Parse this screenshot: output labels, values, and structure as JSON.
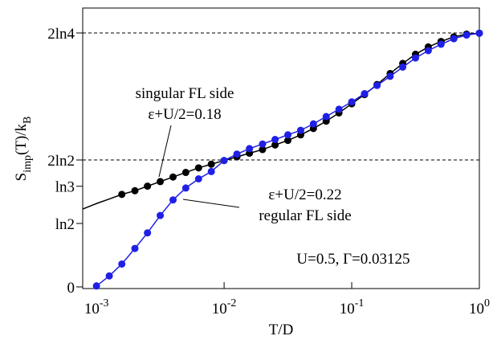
{
  "chart_data": {
    "type": "scatter",
    "xlabel": "T/D",
    "ylabel": [
      {
        "text": "S"
      },
      {
        "text": "imp",
        "sub": true
      },
      {
        "text": "(T)/k"
      },
      {
        "text": "B",
        "sub": true
      }
    ],
    "xscale": "log",
    "xlim": [
      0.00078,
      1.0
    ],
    "ylim": [
      -0.018,
      3.045
    ],
    "xticks": [
      {
        "value": 0.001,
        "label": "10",
        "exponent": "-3"
      },
      {
        "value": 0.01,
        "label": "10",
        "exponent": "-2"
      },
      {
        "value": 0.1,
        "label": "10",
        "exponent": "-1"
      },
      {
        "value": 1,
        "label": "10",
        "exponent": "0"
      }
    ],
    "yticks": [
      0,
      {
        "value": 0.693,
        "label": "ln2"
      },
      {
        "value": 1.099,
        "label": "ln3"
      },
      {
        "value": 1.386,
        "label": "2ln2"
      },
      {
        "value": 2.773,
        "label": "2ln4"
      }
    ],
    "hlines": [
      1.386,
      2.773
    ],
    "annotations": [
      "singular FL side",
      "ε+U/2=0.18",
      "ε+U/2=0.22",
      "regular FL side",
      "U=0.5, Γ=0.03125"
    ],
    "series": [
      {
        "color": "#000000",
        "markers": true,
        "x": [
          0.00158,
          0.002,
          0.00251,
          0.00316,
          0.00398,
          0.00501,
          0.00631,
          0.00794,
          0.01,
          0.0126,
          0.0158,
          0.02,
          0.0251,
          0.0316,
          0.0398,
          0.0501,
          0.0631,
          0.0794,
          0.1,
          0.126,
          0.158,
          0.2,
          0.251,
          0.316,
          0.398,
          0.501,
          0.631,
          0.794,
          1
        ],
        "values": [
          1.01,
          1.05,
          1.1,
          1.15,
          1.2,
          1.25,
          1.3,
          1.34,
          1.38,
          1.42,
          1.46,
          1.5,
          1.55,
          1.6,
          1.66,
          1.73,
          1.81,
          1.9,
          2.0,
          2.1,
          2.21,
          2.33,
          2.44,
          2.54,
          2.62,
          2.68,
          2.73,
          2.76,
          2.77
        ]
      },
      {
        "color": "#000000",
        "markers": false,
        "x": [
          0.00078,
          0.001,
          0.00126,
          0.00158
        ],
        "values": [
          0.85,
          0.91,
          0.96,
          1.01
        ]
      },
      {
        "color": "#1f1fe6",
        "markers": true,
        "x": [
          0.001,
          0.00126,
          0.00158,
          0.002,
          0.00251,
          0.00316,
          0.00398,
          0.00501,
          0.00631,
          0.00794,
          0.01,
          0.0126,
          0.0158,
          0.02,
          0.0251,
          0.0316,
          0.0398,
          0.0501,
          0.0631,
          0.0794,
          0.1,
          0.126,
          0.158,
          0.2,
          0.251,
          0.316,
          0.398,
          0.501,
          0.631,
          0.794,
          1
        ],
        "values": [
          0.01,
          0.12,
          0.25,
          0.42,
          0.59,
          0.78,
          0.95,
          1.08,
          1.18,
          1.26,
          1.38,
          1.45,
          1.51,
          1.56,
          1.61,
          1.66,
          1.71,
          1.78,
          1.86,
          1.94,
          2.02,
          2.11,
          2.2,
          2.3,
          2.4,
          2.5,
          2.58,
          2.65,
          2.71,
          2.75,
          2.77
        ]
      }
    ]
  }
}
